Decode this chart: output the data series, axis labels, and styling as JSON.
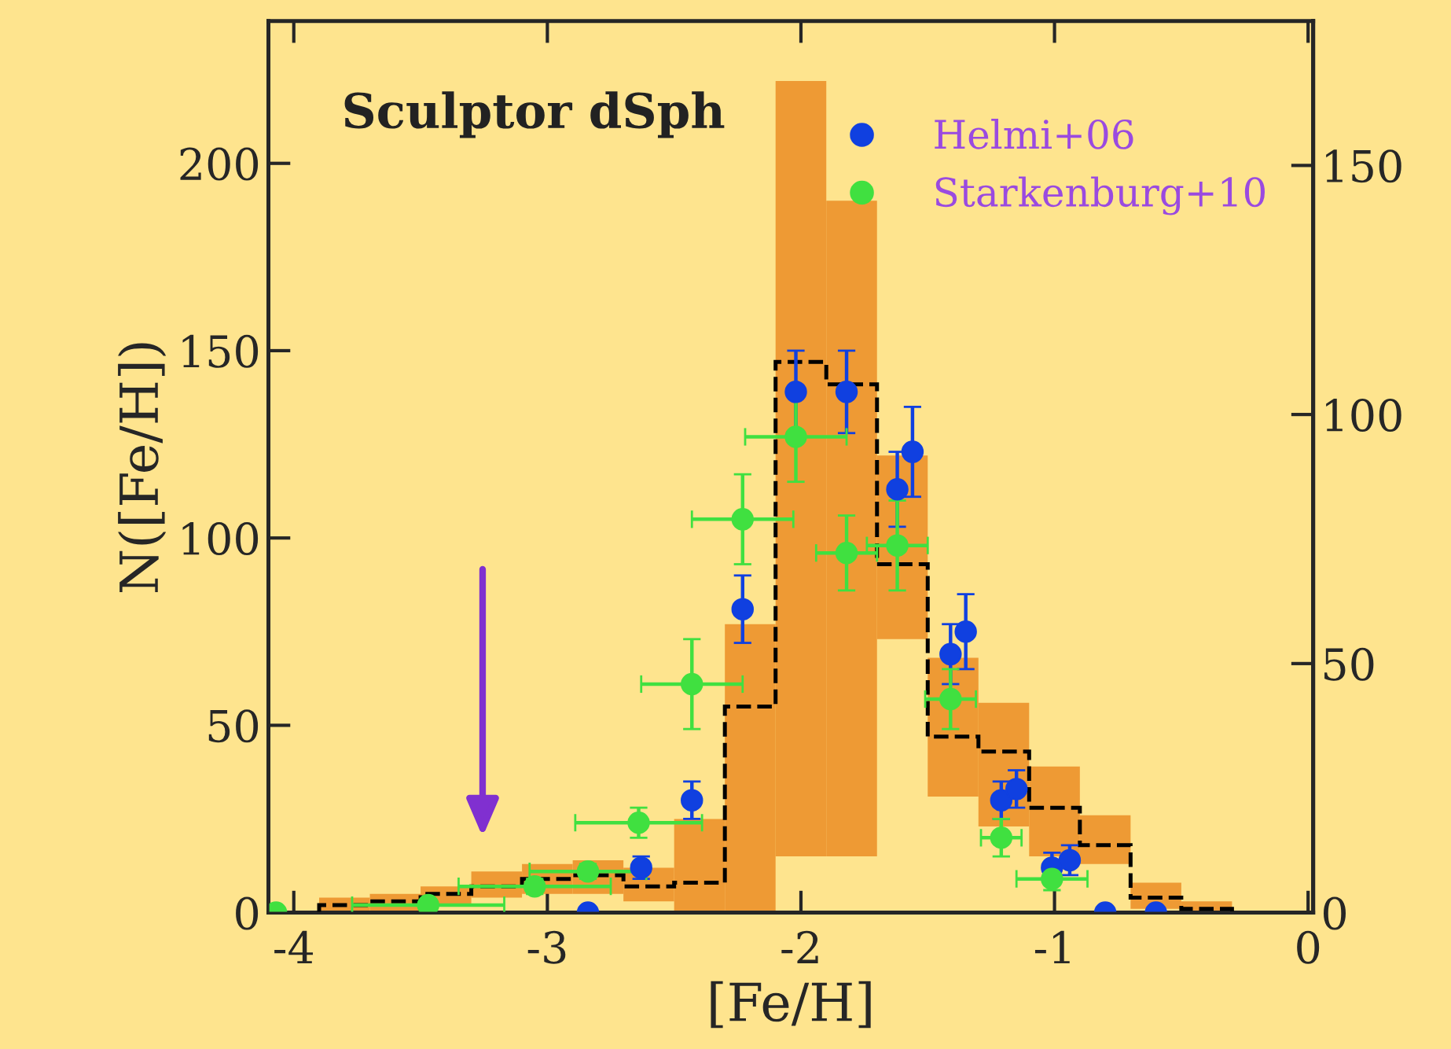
{
  "chart_data": {
    "type": "scatter",
    "title": "Sculptor dSph",
    "xlabel": "[Fe/H]",
    "ylabel": "N([Fe/H])",
    "xlim": [
      -4.1,
      0.02
    ],
    "xticks": [
      -4,
      -3,
      -2,
      -1,
      0
    ],
    "ylim": [
      0,
      238
    ],
    "yticks": [
      0,
      50,
      100,
      150,
      200
    ],
    "y2lim": [
      0,
      179
    ],
    "y2ticks": [
      0,
      50,
      100,
      150
    ],
    "legend": "top right",
    "grid": false,
    "marker": "circle",
    "series": [
      {
        "type": "bar",
        "color": "#ee9a34",
        "x": [
          -3.8,
          -3.6,
          -3.4,
          -3.2,
          -3.0,
          -2.8,
          -2.6,
          -2.4,
          -2.2,
          -2.0,
          -1.8,
          -1.6,
          -1.4,
          -1.2,
          -1.0,
          -0.8,
          -0.6,
          -0.4
        ],
        "base": [
          0,
          0,
          2,
          4,
          5,
          5,
          3,
          0,
          0,
          15,
          15,
          73,
          31,
          23,
          15,
          13,
          1,
          0
        ],
        "values": [
          4,
          5,
          5,
          7,
          8,
          9,
          9,
          25,
          77,
          207,
          175,
          49,
          37,
          33,
          24,
          13,
          7,
          3
        ]
      },
      {
        "type": "histogram",
        "color": "#000000",
        "line_style": "dashed",
        "bins": [
          -3.9,
          -3.7,
          -3.5,
          -3.3,
          -3.1,
          -2.9,
          -2.7,
          -2.5,
          -2.3,
          -2.1,
          -1.9,
          -1.7,
          -1.5,
          -1.3,
          -1.1,
          -0.9,
          -0.7,
          -0.5,
          -0.3
        ],
        "values": [
          2,
          3,
          5,
          7,
          9,
          10,
          7,
          8,
          55,
          147,
          141,
          93,
          47,
          43,
          28,
          18,
          4,
          1
        ]
      },
      {
        "name": "Helmi+06",
        "color": "#1040e0",
        "x": [
          -2.84,
          -2.63,
          -2.43,
          -2.23,
          -2.02,
          -1.82,
          -1.62,
          -1.56,
          -1.41,
          -1.35,
          -1.21,
          -1.15,
          -1.01,
          -0.94,
          -0.8,
          -0.6
        ],
        "values": [
          0,
          12,
          30,
          81,
          139,
          139,
          113,
          123,
          69,
          75,
          30,
          33,
          12,
          14,
          0,
          0
        ],
        "errors": [
          null,
          3,
          5,
          9,
          11,
          11,
          10,
          12,
          8,
          10,
          5,
          5,
          4,
          4,
          null,
          null
        ]
      },
      {
        "name": "Starkenburg+10",
        "color": "#40e040",
        "x": [
          -4.07,
          -3.47,
          -3.05,
          -2.84,
          -2.64,
          -2.43,
          -2.23,
          -2.02,
          -1.82,
          -1.62,
          -1.41,
          -1.21,
          -1.01
        ],
        "values": [
          0,
          2,
          7,
          11,
          24,
          61,
          105,
          127,
          96,
          98,
          57,
          20,
          9
        ],
        "errors": [
          null,
          1,
          2,
          2,
          4,
          12,
          12,
          12,
          10,
          12,
          8,
          5,
          3
        ],
        "xerrors": [
          null,
          0.3,
          0.3,
          0.23,
          0.25,
          0.2,
          0.2,
          0.2,
          0.12,
          0.12,
          0.1,
          0.08,
          0.14
        ]
      }
    ]
  }
}
